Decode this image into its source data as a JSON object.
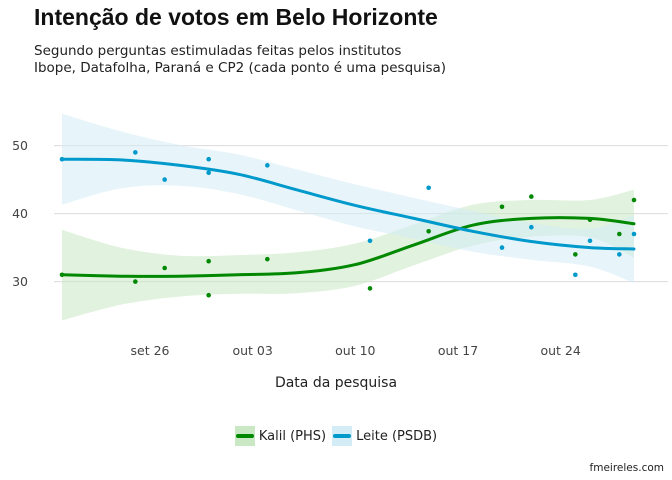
{
  "title": "Intenção de votos em Belo Horizonte",
  "subtitle": [
    "Segundo perguntas estimuladas feitas pelos institutos",
    "Ibope, Datafolha, Paraná e CP2 (cada ponto é uma pesquisa)"
  ],
  "credit": "fmeireles.com",
  "chart_data": {
    "type": "scatter",
    "title": "Intenção de votos em Belo Horizonte",
    "xlabel": "Data da pesquisa",
    "ylabel": "",
    "x_ticks": [
      {
        "date": "2016-09-26",
        "label": "set 26"
      },
      {
        "date": "2016-10-03",
        "label": "out 03"
      },
      {
        "date": "2016-10-10",
        "label": "out 10"
      },
      {
        "date": "2016-10-17",
        "label": "out 17"
      },
      {
        "date": "2016-10-24",
        "label": "out 24"
      }
    ],
    "y_ticks": [
      30,
      40,
      50
    ],
    "xlim": [
      "2016-09-20",
      "2016-10-29"
    ],
    "ylim": [
      22,
      57
    ],
    "grid": true,
    "legend_position": "bottom",
    "series": [
      {
        "name": "Kalil (PHS)",
        "color": "#008800",
        "band_color": "#c9e8c3",
        "points": [
          {
            "x": "2016-09-20",
            "y": 31
          },
          {
            "x": "2016-09-25",
            "y": 30
          },
          {
            "x": "2016-09-27",
            "y": 32
          },
          {
            "x": "2016-09-30",
            "y": 33
          },
          {
            "x": "2016-09-30",
            "y": 28
          },
          {
            "x": "2016-10-04",
            "y": 33.3
          },
          {
            "x": "2016-10-11",
            "y": 29
          },
          {
            "x": "2016-10-15",
            "y": 37.4
          },
          {
            "x": "2016-10-20",
            "y": 41
          },
          {
            "x": "2016-10-22",
            "y": 42.5
          },
          {
            "x": "2016-10-25",
            "y": 34
          },
          {
            "x": "2016-10-26",
            "y": 39.1
          },
          {
            "x": "2016-10-28",
            "y": 37
          },
          {
            "x": "2016-10-29",
            "y": 42
          }
        ],
        "smooth": [
          {
            "x": "2016-09-20",
            "y": 31.0,
            "lo": 24.3,
            "hi": 37.6
          },
          {
            "x": "2016-09-24",
            "y": 30.8,
            "lo": 26.6,
            "hi": 35.0
          },
          {
            "x": "2016-09-28",
            "y": 30.8,
            "lo": 27.8,
            "hi": 33.8
          },
          {
            "x": "2016-10-02",
            "y": 31.0,
            "lo": 28.2,
            "hi": 33.9
          },
          {
            "x": "2016-10-06",
            "y": 31.3,
            "lo": 28.3,
            "hi": 34.3
          },
          {
            "x": "2016-10-10",
            "y": 32.5,
            "lo": 29.4,
            "hi": 35.6
          },
          {
            "x": "2016-10-14",
            "y": 35.4,
            "lo": 32.4,
            "hi": 38.4
          },
          {
            "x": "2016-10-18",
            "y": 38.3,
            "lo": 35.3,
            "hi": 41.3
          },
          {
            "x": "2016-10-22",
            "y": 39.3,
            "lo": 36.6,
            "hi": 42.0
          },
          {
            "x": "2016-10-26",
            "y": 39.3,
            "lo": 36.5,
            "hi": 42.0
          },
          {
            "x": "2016-10-29",
            "y": 38.5,
            "lo": 33.5,
            "hi": 43.5
          }
        ]
      },
      {
        "name": "Leite (PSDB)",
        "color": "#0099cc",
        "band_color": "#d3ecf6",
        "points": [
          {
            "x": "2016-09-20",
            "y": 48
          },
          {
            "x": "2016-09-25",
            "y": 49
          },
          {
            "x": "2016-09-27",
            "y": 45
          },
          {
            "x": "2016-09-30",
            "y": 48
          },
          {
            "x": "2016-09-30",
            "y": 46
          },
          {
            "x": "2016-10-04",
            "y": 47.1
          },
          {
            "x": "2016-10-11",
            "y": 36
          },
          {
            "x": "2016-10-15",
            "y": 43.8
          },
          {
            "x": "2016-10-20",
            "y": 35
          },
          {
            "x": "2016-10-22",
            "y": 38
          },
          {
            "x": "2016-10-25",
            "y": 31
          },
          {
            "x": "2016-10-26",
            "y": 36
          },
          {
            "x": "2016-10-28",
            "y": 34
          },
          {
            "x": "2016-10-29",
            "y": 37
          }
        ],
        "smooth": [
          {
            "x": "2016-09-20",
            "y": 48.0,
            "lo": 41.3,
            "hi": 54.7
          },
          {
            "x": "2016-09-24",
            "y": 47.9,
            "lo": 43.7,
            "hi": 52.1
          },
          {
            "x": "2016-09-28",
            "y": 47.1,
            "lo": 44.1,
            "hi": 50.1
          },
          {
            "x": "2016-10-02",
            "y": 45.8,
            "lo": 42.9,
            "hi": 48.7
          },
          {
            "x": "2016-10-06",
            "y": 43.5,
            "lo": 40.5,
            "hi": 46.5
          },
          {
            "x": "2016-10-10",
            "y": 41.2,
            "lo": 38.1,
            "hi": 44.3
          },
          {
            "x": "2016-10-14",
            "y": 39.3,
            "lo": 36.3,
            "hi": 42.3
          },
          {
            "x": "2016-10-18",
            "y": 37.4,
            "lo": 34.4,
            "hi": 40.4
          },
          {
            "x": "2016-10-22",
            "y": 35.9,
            "lo": 33.2,
            "hi": 38.6
          },
          {
            "x": "2016-10-26",
            "y": 35.0,
            "lo": 32.2,
            "hi": 37.8
          },
          {
            "x": "2016-10-29",
            "y": 34.8,
            "lo": 29.8,
            "hi": 39.8
          }
        ]
      }
    ]
  }
}
